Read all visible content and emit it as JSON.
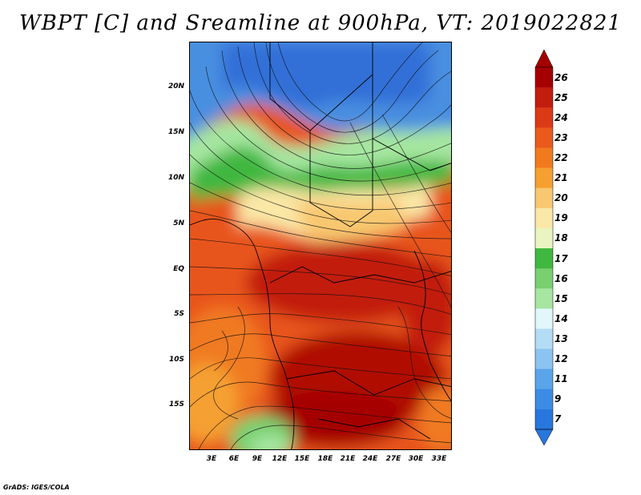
{
  "title": "WBPT [C] and Sreamline at 900hPa, VT: 2019022821",
  "credit": "GrADS: IGES/COLA",
  "map": {
    "lat_labels": [
      "20N",
      "15N",
      "10N",
      "5N",
      "EQ",
      "5S",
      "10S",
      "15S"
    ],
    "lon_labels": [
      "3E",
      "6E",
      "9E",
      "12E",
      "15E",
      "18E",
      "21E",
      "24E",
      "27E",
      "30E",
      "33E"
    ]
  },
  "colorbar": {
    "labels": [
      "26",
      "25",
      "24",
      "23",
      "22",
      "21",
      "20",
      "19",
      "18",
      "17",
      "16",
      "15",
      "14",
      "13",
      "12",
      "11",
      "9",
      "7"
    ],
    "colors": [
      "#a50000",
      "#c21d0d",
      "#dc3a16",
      "#ea5a1d",
      "#f17a1f",
      "#f5a030",
      "#f8c870",
      "#fbe7a6",
      "#e8f5c0",
      "#40b840",
      "#78d070",
      "#a6e6a0",
      "#e1f7fa",
      "#b4dcf5",
      "#8cc3f0",
      "#5aa5ea",
      "#3c8ce6",
      "#2877de"
    ]
  }
}
